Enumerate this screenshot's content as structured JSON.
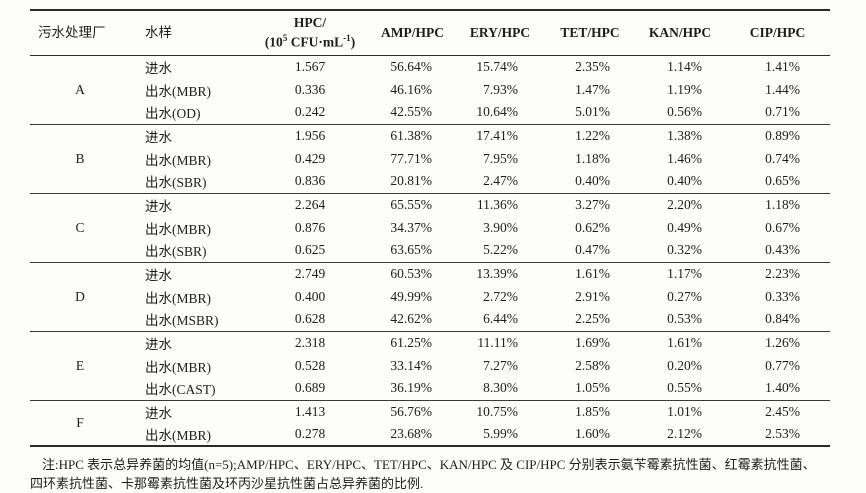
{
  "table": {
    "headers": {
      "plant": "污水处理厂",
      "sample": "水样",
      "hpc_line1": "HPC/",
      "hpc_open": "(10",
      "hpc_exp": "5",
      "hpc_unit": " CFU·mL",
      "hpc_exp2": "-1",
      "hpc_close": ")",
      "amp": "AMP/HPC",
      "ery": "ERY/HPC",
      "tet": "TET/HPC",
      "kan": "KAN/HPC",
      "cip": "CIP/HPC"
    },
    "groups": [
      {
        "plant": "A",
        "rows": [
          {
            "sample": "进水",
            "hpc": "1.567",
            "amp": "56.64%",
            "ery": "15.74%",
            "tet": "2.35%",
            "kan": "1.14%",
            "cip": "1.41%"
          },
          {
            "sample": "出水(MBR)",
            "hpc": "0.336",
            "amp": "46.16%",
            "ery": "7.93%",
            "tet": "1.47%",
            "kan": "1.19%",
            "cip": "1.44%"
          },
          {
            "sample": "出水(OD)",
            "hpc": "0.242",
            "amp": "42.55%",
            "ery": "10.64%",
            "tet": "5.01%",
            "kan": "0.56%",
            "cip": "0.71%"
          }
        ]
      },
      {
        "plant": "B",
        "rows": [
          {
            "sample": "进水",
            "hpc": "1.956",
            "amp": "61.38%",
            "ery": "17.41%",
            "tet": "1.22%",
            "kan": "1.38%",
            "cip": "0.89%"
          },
          {
            "sample": "出水(MBR)",
            "hpc": "0.429",
            "amp": "77.71%",
            "ery": "7.95%",
            "tet": "1.18%",
            "kan": "1.46%",
            "cip": "0.74%"
          },
          {
            "sample": "出水(SBR)",
            "hpc": "0.836",
            "amp": "20.81%",
            "ery": "2.47%",
            "tet": "0.40%",
            "kan": "0.40%",
            "cip": "0.65%"
          }
        ]
      },
      {
        "plant": "C",
        "rows": [
          {
            "sample": "进水",
            "hpc": "2.264",
            "amp": "65.55%",
            "ery": "11.36%",
            "tet": "3.27%",
            "kan": "2.20%",
            "cip": "1.18%"
          },
          {
            "sample": "出水(MBR)",
            "hpc": "0.876",
            "amp": "34.37%",
            "ery": "3.90%",
            "tet": "0.62%",
            "kan": "0.49%",
            "cip": "0.67%"
          },
          {
            "sample": "出水(SBR)",
            "hpc": "0.625",
            "amp": "63.65%",
            "ery": "5.22%",
            "tet": "0.47%",
            "kan": "0.32%",
            "cip": "0.43%"
          }
        ]
      },
      {
        "plant": "D",
        "rows": [
          {
            "sample": "进水",
            "hpc": "2.749",
            "amp": "60.53%",
            "ery": "13.39%",
            "tet": "1.61%",
            "kan": "1.17%",
            "cip": "2.23%"
          },
          {
            "sample": "出水(MBR)",
            "hpc": "0.400",
            "amp": "49.99%",
            "ery": "2.72%",
            "tet": "2.91%",
            "kan": "0.27%",
            "cip": "0.33%"
          },
          {
            "sample": "出水(MSBR)",
            "hpc": "0.628",
            "amp": "42.62%",
            "ery": "6.44%",
            "tet": "2.25%",
            "kan": "0.53%",
            "cip": "0.84%"
          }
        ]
      },
      {
        "plant": "E",
        "rows": [
          {
            "sample": "进水",
            "hpc": "2.318",
            "amp": "61.25%",
            "ery": "11.11%",
            "tet": "1.69%",
            "kan": "1.61%",
            "cip": "1.26%"
          },
          {
            "sample": "出水(MBR)",
            "hpc": "0.528",
            "amp": "33.14%",
            "ery": "7.27%",
            "tet": "2.58%",
            "kan": "0.20%",
            "cip": "0.77%"
          },
          {
            "sample": "出水(CAST)",
            "hpc": "0.689",
            "amp": "36.19%",
            "ery": "8.30%",
            "tet": "1.05%",
            "kan": "0.55%",
            "cip": "1.40%"
          }
        ]
      },
      {
        "plant": "F",
        "rows": [
          {
            "sample": "进水",
            "hpc": "1.413",
            "amp": "56.76%",
            "ery": "10.75%",
            "tet": "1.85%",
            "kan": "1.01%",
            "cip": "2.45%"
          },
          {
            "sample": "出水(MBR)",
            "hpc": "0.278",
            "amp": "23.68%",
            "ery": "5.99%",
            "tet": "1.60%",
            "kan": "2.12%",
            "cip": "2.53%"
          }
        ]
      }
    ]
  },
  "footnote": {
    "line1": "注:HPC 表示总异养菌的均值(n=5);AMP/HPC、ERY/HPC、TET/HPC、KAN/HPC 及 CIP/HPC 分别表示氨苄霉素抗性菌、红霉素抗性菌、",
    "line2": "四环素抗性菌、卡那霉素抗性菌及环丙沙星抗性菌占总异养菌的比例."
  }
}
